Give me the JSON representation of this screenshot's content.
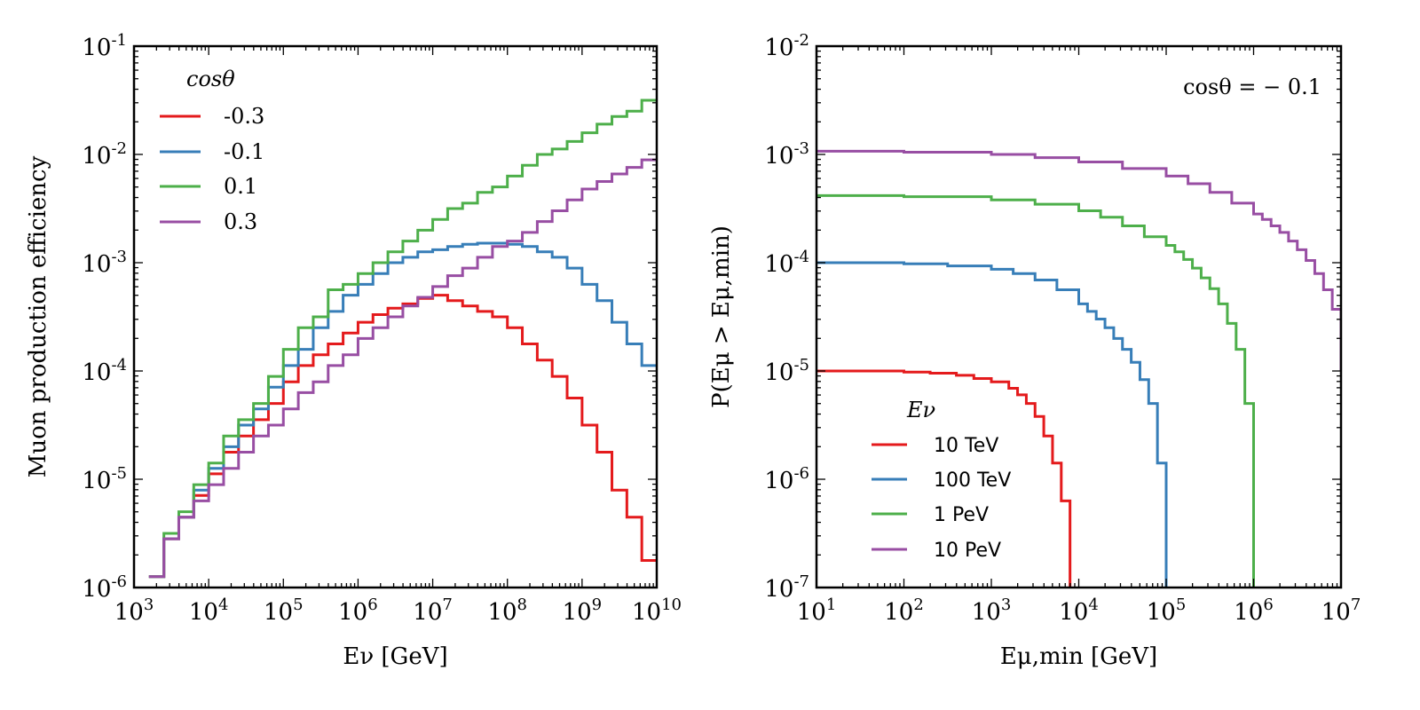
{
  "chart_data": [
    {
      "type": "line",
      "style": "step",
      "xlabel": "Eν [GeV]",
      "ylabel": "Muon production efficiency",
      "xscale": "log",
      "yscale": "log",
      "xlim": [
        1000.0,
        10000000000.0
      ],
      "ylim": [
        1e-06,
        0.1
      ],
      "x_tick_exponents": [
        3,
        4,
        5,
        6,
        7,
        8,
        9,
        10
      ],
      "y_tick_exponents": [
        -6,
        -5,
        -4,
        -3,
        -2,
        -1
      ],
      "tick_base": "10",
      "legend": {
        "title": "cosθ",
        "placement": "upper-left"
      },
      "log10_edges": [
        3.2,
        3.4,
        3.6,
        3.8,
        4.0,
        4.2,
        4.4,
        4.6,
        4.8,
        5.0,
        5.2,
        5.4,
        5.6,
        5.8,
        6.0,
        6.2,
        6.4,
        6.6,
        6.8,
        7.0,
        7.2,
        7.4,
        7.6,
        7.8,
        8.0,
        8.2,
        8.4,
        8.6,
        8.8,
        9.0,
        9.2,
        9.4,
        9.6,
        9.8,
        10.0
      ],
      "series": [
        {
          "name": "-0.3",
          "color": "#e41a1c",
          "log10_values": [
            -5.9,
            -5.55,
            -5.35,
            -5.15,
            -4.95,
            -4.75,
            -4.6,
            -4.45,
            -4.3,
            -4.1,
            -3.95,
            -3.85,
            -3.75,
            -3.65,
            -3.55,
            -3.48,
            -3.42,
            -3.38,
            -3.33,
            -3.3,
            -3.35,
            -3.4,
            -3.45,
            -3.5,
            -3.6,
            -3.75,
            -3.9,
            -4.05,
            -4.25,
            -4.5,
            -4.75,
            -5.1,
            -5.35,
            -5.75
          ]
        },
        {
          "name": "-0.1",
          "color": "#377eb8",
          "log10_values": [
            -5.9,
            -5.55,
            -5.35,
            -5.1,
            -4.9,
            -4.7,
            -4.5,
            -4.35,
            -4.15,
            -3.95,
            -3.8,
            -3.6,
            -3.45,
            -3.3,
            -3.2,
            -3.1,
            -3.0,
            -2.95,
            -2.9,
            -2.88,
            -2.85,
            -2.83,
            -2.82,
            -2.82,
            -2.83,
            -2.85,
            -2.9,
            -2.95,
            -3.05,
            -3.2,
            -3.35,
            -3.55,
            -3.75,
            -3.95
          ]
        },
        {
          "name": "0.1",
          "color": "#4daf4a",
          "log10_values": [
            -5.9,
            -5.5,
            -5.3,
            -5.05,
            -4.85,
            -4.6,
            -4.45,
            -4.3,
            -4.05,
            -3.8,
            -3.6,
            -3.5,
            -3.25,
            -3.2,
            -3.1,
            -3.0,
            -2.9,
            -2.8,
            -2.7,
            -2.6,
            -2.5,
            -2.45,
            -2.35,
            -2.3,
            -2.2,
            -2.1,
            -2.0,
            -1.95,
            -1.88,
            -1.8,
            -1.72,
            -1.65,
            -1.6,
            -1.5
          ]
        },
        {
          "name": "0.3",
          "color": "#984ea3",
          "log10_values": [
            -5.9,
            -5.55,
            -5.35,
            -5.2,
            -5.05,
            -4.9,
            -4.75,
            -4.6,
            -4.5,
            -4.35,
            -4.2,
            -4.1,
            -3.95,
            -3.85,
            -3.7,
            -3.6,
            -3.5,
            -3.4,
            -3.32,
            -3.22,
            -3.12,
            -3.05,
            -2.95,
            -2.85,
            -2.8,
            -2.72,
            -2.62,
            -2.52,
            -2.42,
            -2.32,
            -2.25,
            -2.18,
            -2.12,
            -2.05
          ]
        }
      ]
    },
    {
      "type": "line",
      "style": "step",
      "xlabel": "Eμ,min [GeV]",
      "ylabel": "P(Eμ > Eμ,min)",
      "xscale": "log",
      "yscale": "log",
      "xlim": [
        10.0,
        10000000.0
      ],
      "ylim": [
        1e-07,
        0.01
      ],
      "x_tick_exponents": [
        1,
        2,
        3,
        4,
        5,
        6,
        7
      ],
      "y_tick_exponents": [
        -7,
        -6,
        -5,
        -4,
        -3,
        -2
      ],
      "tick_base": "10",
      "annotation": "cosθ = − 0.1",
      "legend": {
        "title": "Eν",
        "placement": "lower-left"
      },
      "series": [
        {
          "name": "10 TeV",
          "color": "#e41a1c",
          "log10_edges": [
            1,
            1.5,
            2,
            2.3,
            2.6,
            2.8,
            3.0,
            3.2,
            3.3,
            3.4,
            3.5,
            3.6,
            3.7,
            3.8,
            3.9
          ],
          "log10_values": [
            -5.0,
            -5.0,
            -5.01,
            -5.02,
            -5.04,
            -5.07,
            -5.1,
            -5.16,
            -5.22,
            -5.3,
            -5.42,
            -5.6,
            -5.85,
            -6.2
          ],
          "end_log10_value": -7
        },
        {
          "name": "100 TeV",
          "color": "#377eb8",
          "log10_edges": [
            1,
            2,
            2.5,
            3,
            3.25,
            3.5,
            3.75,
            4.0,
            4.1,
            4.2,
            4.3,
            4.4,
            4.5,
            4.6,
            4.7,
            4.8,
            4.9,
            5.0
          ],
          "log10_values": [
            -4.0,
            -4.01,
            -4.03,
            -4.06,
            -4.1,
            -4.16,
            -4.25,
            -4.38,
            -4.45,
            -4.52,
            -4.6,
            -4.7,
            -4.8,
            -4.92,
            -5.08,
            -5.3,
            -5.85
          ],
          "end_log10_value": -7
        },
        {
          "name": "1 PeV",
          "color": "#4daf4a",
          "log10_edges": [
            1,
            2,
            3,
            3.5,
            4,
            4.25,
            4.5,
            4.75,
            5.0,
            5.1,
            5.2,
            5.3,
            5.4,
            5.5,
            5.6,
            5.7,
            5.8,
            5.9,
            6.0
          ],
          "log10_values": [
            -3.38,
            -3.39,
            -3.42,
            -3.46,
            -3.52,
            -3.58,
            -3.66,
            -3.76,
            -3.84,
            -3.9,
            -3.97,
            -4.05,
            -4.14,
            -4.24,
            -4.38,
            -4.56,
            -4.8,
            -5.3
          ],
          "end_log10_value": -7
        },
        {
          "name": "10 PeV",
          "color": "#984ea3",
          "log10_edges": [
            1,
            2,
            3,
            3.5,
            4,
            4.5,
            5,
            5.25,
            5.5,
            5.75,
            6.0,
            6.1,
            6.2,
            6.3,
            6.4,
            6.5,
            6.6,
            6.7,
            6.8,
            6.9,
            7.0
          ],
          "log10_values": [
            -2.97,
            -2.98,
            -3.0,
            -3.03,
            -3.07,
            -3.13,
            -3.2,
            -3.27,
            -3.35,
            -3.45,
            -3.55,
            -3.6,
            -3.66,
            -3.72,
            -3.8,
            -3.88,
            -3.98,
            -4.1,
            -4.25,
            -4.43
          ],
          "end_log10_value": -5
        }
      ]
    }
  ]
}
